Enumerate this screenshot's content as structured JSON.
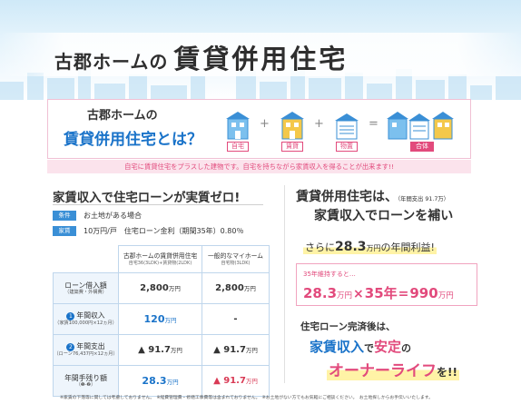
{
  "header": {
    "title_part1": "古郡ホームの",
    "title_part2": "賃貸併用住宅"
  },
  "intro": {
    "line1": "古郡ホームの",
    "line2": "賃貸併用住宅とは？",
    "house_labels": [
      "自宅",
      "賃貸",
      "物置",
      "合体"
    ],
    "operators": [
      "+",
      "+",
      "="
    ],
    "banner": "自宅に賃貸住宅をプラスした建物です。自宅を持ちながら家賃収入を得ることが出来ます!!"
  },
  "left": {
    "heading": "家賃収入で住宅ローンが実質ゼロ!",
    "conditions": [
      {
        "tag": "条件",
        "text": "お土地がある場合"
      },
      {
        "tag": "家賃",
        "text": "10万円/戸　住宅ローン金利（期間35年）0.80％"
      }
    ],
    "table": {
      "col1": {
        "title": "古郡ホームの賃貸併用住宅",
        "sub": "自宅36(3LDK)+賃貸物(2LDK)"
      },
      "col2": {
        "title": "一般的なマイホーム",
        "sub": "自宅物(3LDK)"
      },
      "rows": [
        {
          "label": "ローン借入額",
          "sub": "（建築費・外構費）",
          "num": "",
          "v1": "2,800",
          "u1": "万円",
          "v2": "2,800",
          "u2": "万円"
        },
        {
          "label": "年間収入",
          "sub": "（家賃100,000円×12ヵ月）",
          "num": "1",
          "v1": "120",
          "u1": "万円",
          "v2": "-",
          "u2": ""
        },
        {
          "label": "年間支出",
          "sub": "（ローン76,437円×12ヵ月）",
          "num": "2",
          "v1": "▲ 91.7",
          "u1": "万円",
          "v2": "▲ 91.7",
          "u2": "万円"
        },
        {
          "label": "年間手残り額",
          "sub": "（❶-❷）",
          "num": "",
          "v1": "28.3",
          "u1": "万円",
          "v2": "▲ 91.7",
          "u2": "万円"
        }
      ]
    }
  },
  "right": {
    "l1_big": "賃貸併用住宅は、",
    "l1_small": "（年間支出 91.7万）",
    "l2": "家賃収入でローンを補い",
    "l3_pre": "さらに",
    "l3_num": "28.3",
    "l3_unit": "万円",
    "l3_post": "の年間利益!",
    "calc_caption": "35年維持すると…",
    "calc_a": "28.3",
    "calc_a_unit": "万円",
    "calc_times": "×",
    "calc_b": "35年",
    "calc_eq": "=",
    "calc_c": "990",
    "calc_c_unit": "万円",
    "closing1": "住宅ローン完済後は、",
    "closing2_blue": "家賃収入",
    "closing2_k": "で",
    "closing2_pink": "安定",
    "closing2_end": "の",
    "closing3": "オーナーライフ",
    "closing3_end": "を!!"
  },
  "footnote": "※家賃の下落等に関しては考慮しておりません。　※経費管理費・修繕工事費等は含まれておりません。　※お土地がない方でもお気軽にご相談ください。　お土地探しからお手伝いいたします。",
  "colors": {
    "blue": "#1a73c9",
    "pink": "#e24a7c",
    "sky": "#cfe9f8"
  }
}
